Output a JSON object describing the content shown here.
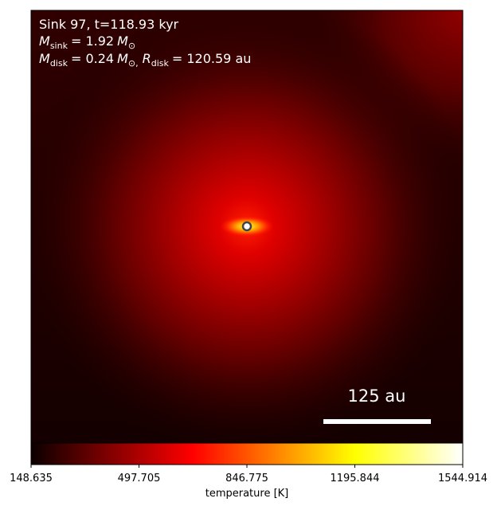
{
  "chart_data": {
    "type": "heatmap",
    "colormap": "hot",
    "annotation": {
      "title": "Sink 97, t=118.93 kyr",
      "sink_mass": {
        "symbol": "M",
        "subscript": "sink",
        "text": "= 1.92",
        "unit": "M",
        "unit_sub": "⊙"
      },
      "disk": {
        "symbol": "M",
        "subscript": "disk",
        "text": "= 0.24",
        "unit": "M",
        "unit_sub": "⊙,",
        "r_symbol": "R",
        "r_subscript": "disk",
        "r_text": "= 120.59 au"
      }
    },
    "scale_bar": {
      "label": "125 au"
    },
    "colorbar": {
      "label": "temperature [K]",
      "clim": [
        148.635,
        1544.914
      ],
      "ticks": [
        148.635,
        497.705,
        846.775,
        1195.844,
        1544.914
      ]
    }
  }
}
